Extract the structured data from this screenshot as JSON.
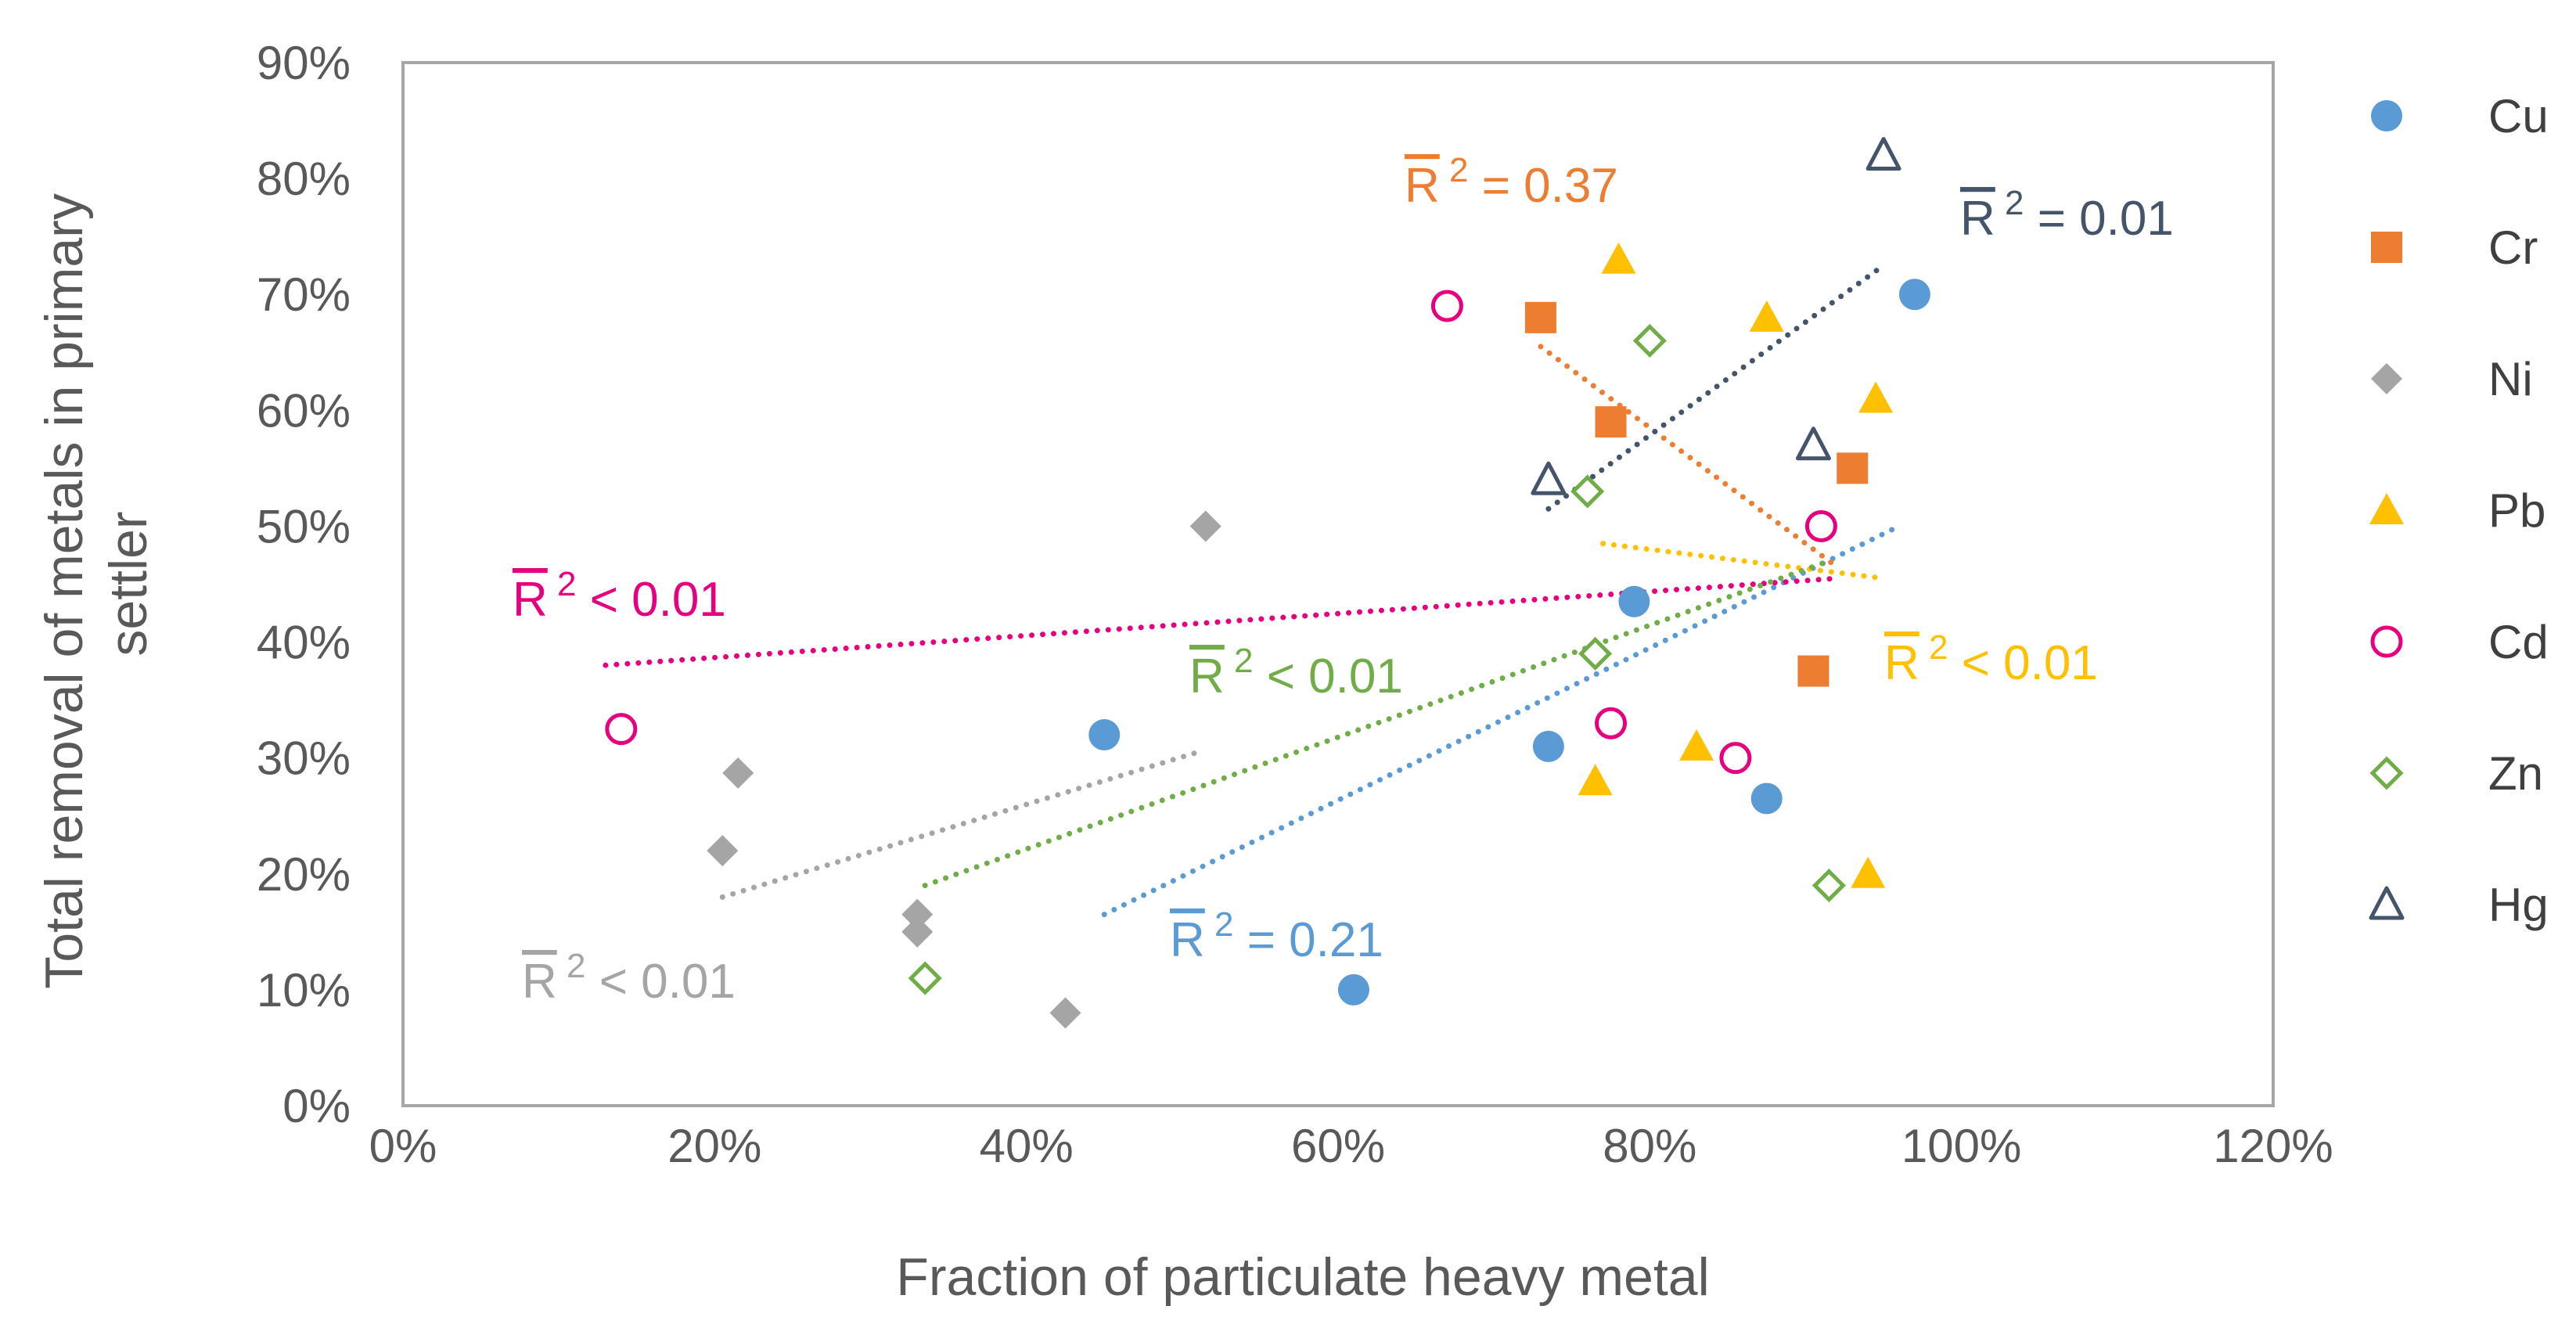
{
  "chart_data": {
    "type": "scatter",
    "title": "",
    "xlabel": "Fraction of particulate heavy metal",
    "ylabel_lines": [
      "Total removal of metals in primary",
      "settler"
    ],
    "xlim": [
      0,
      1.2
    ],
    "ylim": [
      0,
      0.9
    ],
    "x_ticks": [
      0,
      0.2,
      0.4,
      0.6,
      0.8,
      1.0,
      1.2
    ],
    "y_ticks": [
      0,
      0.1,
      0.2,
      0.3,
      0.4,
      0.5,
      0.6,
      0.7,
      0.8,
      0.9
    ],
    "x_tick_labels": [
      "0%",
      "20%",
      "40%",
      "60%",
      "80%",
      "100%",
      "120%"
    ],
    "y_tick_labels": [
      "0%",
      "10%",
      "20%",
      "30%",
      "40%",
      "50%",
      "60%",
      "70%",
      "80%",
      "90%"
    ],
    "grid": false,
    "legend_position": "right",
    "series": [
      {
        "name": "Cu",
        "marker": "circle-filled",
        "color": "#5B9BD5",
        "points": [
          [
            0.45,
            0.32
          ],
          [
            0.61,
            0.1
          ],
          [
            0.735,
            0.31
          ],
          [
            0.79,
            0.435
          ],
          [
            0.875,
            0.265
          ],
          [
            0.97,
            0.7
          ]
        ],
        "trendline": {
          "x": [
            0.45,
            0.96
          ],
          "y": [
            0.165,
            0.5
          ]
        },
        "r2": {
          "prefix": "R",
          "sup": "2",
          "text": " = 0.21"
        }
      },
      {
        "name": "Cr",
        "marker": "square-filled",
        "color": "#ED7D31",
        "points": [
          [
            0.73,
            0.68
          ],
          [
            0.775,
            0.59
          ],
          [
            0.905,
            0.375
          ],
          [
            0.93,
            0.55
          ]
        ],
        "trendline": {
          "x": [
            0.73,
            0.92
          ],
          "y": [
            0.655,
            0.465
          ]
        },
        "r2": {
          "prefix": "R",
          "sup": "2",
          "text": " = 0.37"
        }
      },
      {
        "name": "Ni",
        "marker": "diamond-filled",
        "color": "#A5A5A5",
        "points": [
          [
            0.205,
            0.22
          ],
          [
            0.215,
            0.287
          ],
          [
            0.33,
            0.15
          ],
          [
            0.33,
            0.165
          ],
          [
            0.425,
            0.08
          ],
          [
            0.515,
            0.5
          ]
        ],
        "trendline": {
          "x": [
            0.205,
            0.51
          ],
          "y": [
            0.18,
            0.305
          ]
        },
        "r2": {
          "prefix": "R",
          "sup": "2",
          "text": " < 0.01"
        }
      },
      {
        "name": "Pb",
        "marker": "triangle-filled",
        "color": "#FFC000",
        "points": [
          [
            0.765,
            0.28
          ],
          [
            0.78,
            0.73
          ],
          [
            0.83,
            0.31
          ],
          [
            0.875,
            0.68
          ],
          [
            0.94,
            0.2
          ],
          [
            0.945,
            0.61
          ]
        ],
        "trendline": {
          "x": [
            0.77,
            0.95
          ],
          "y": [
            0.485,
            0.455
          ]
        },
        "r2": {
          "prefix": "R",
          "sup": "2",
          "text": " < 0.01"
        }
      },
      {
        "name": "Cd",
        "marker": "circle-open",
        "color": "#E6007E",
        "points": [
          [
            0.14,
            0.325
          ],
          [
            0.67,
            0.69
          ],
          [
            0.775,
            0.33
          ],
          [
            0.855,
            0.3
          ],
          [
            0.91,
            0.5
          ]
        ],
        "trendline": {
          "x": [
            0.13,
            0.92
          ],
          "y": [
            0.38,
            0.455
          ]
        },
        "r2": {
          "prefix": "R",
          "sup": "2",
          "text": " < 0.01"
        }
      },
      {
        "name": "Zn",
        "marker": "diamond-open",
        "color": "#70AD47",
        "points": [
          [
            0.335,
            0.11
          ],
          [
            0.76,
            0.53
          ],
          [
            0.765,
            0.39
          ],
          [
            0.8,
            0.66
          ],
          [
            0.915,
            0.19
          ]
        ],
        "trendline": {
          "x": [
            0.335,
            0.915
          ],
          "y": [
            0.19,
            0.47
          ]
        },
        "r2": {
          "prefix": "R",
          "sup": "2",
          "text": " < 0.01"
        }
      },
      {
        "name": "Hg",
        "marker": "triangle-open",
        "color": "#44546A",
        "points": [
          [
            0.735,
            0.54
          ],
          [
            0.905,
            0.57
          ],
          [
            0.95,
            0.82
          ]
        ],
        "trendline": {
          "x": [
            0.735,
            0.95
          ],
          "y": [
            0.515,
            0.725
          ]
        },
        "r2": {
          "prefix": "R",
          "sup": "2",
          "text": " = 0.01"
        }
      }
    ]
  }
}
